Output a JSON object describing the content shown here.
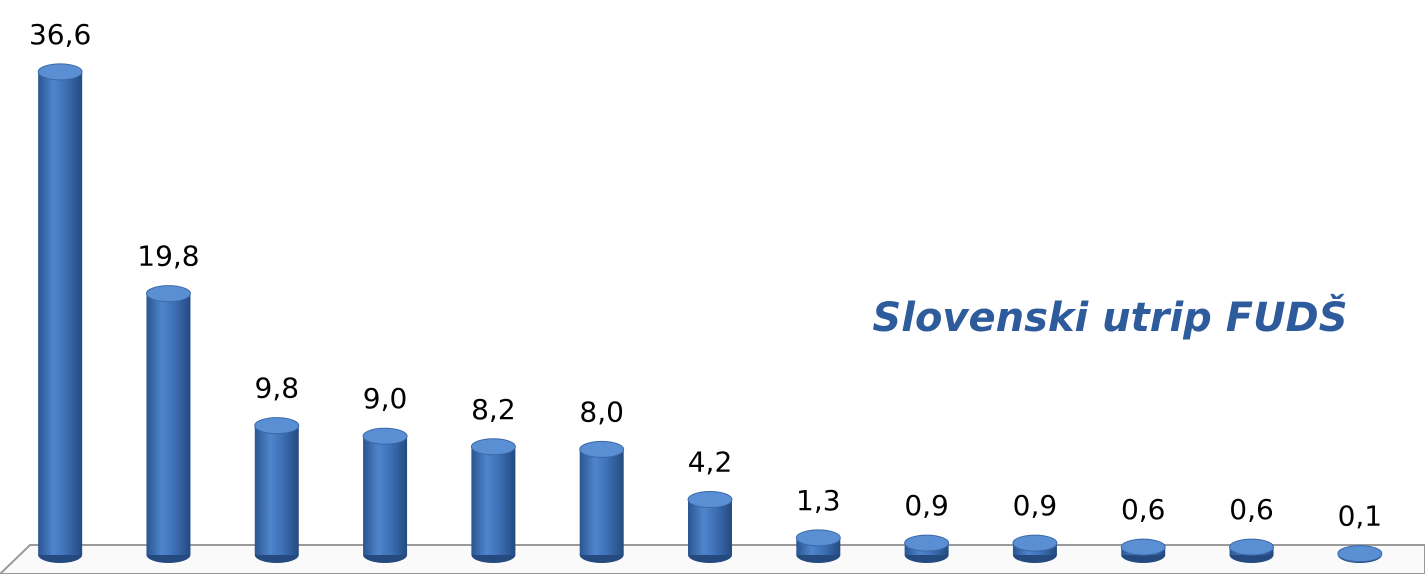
{
  "chart_data": {
    "type": "bar",
    "title": "Slovenski utrip FUDŠ",
    "categories": [
      null,
      null,
      null,
      null,
      null,
      null,
      null,
      null,
      null,
      null,
      null,
      null,
      null
    ],
    "values": [
      36.6,
      19.8,
      9.8,
      9.0,
      8.2,
      8.0,
      4.2,
      1.3,
      0.9,
      0.9,
      0.6,
      0.6,
      0.1
    ],
    "value_labels": [
      "36,6",
      "19,8",
      "9,8",
      "9,0",
      "8,2",
      "8,0",
      "4,2",
      "1,3",
      "0,9",
      "0,9",
      "0,6",
      "0,6",
      "0,1"
    ],
    "color": "#3f72b8",
    "ylim": [
      0,
      40
    ]
  }
}
